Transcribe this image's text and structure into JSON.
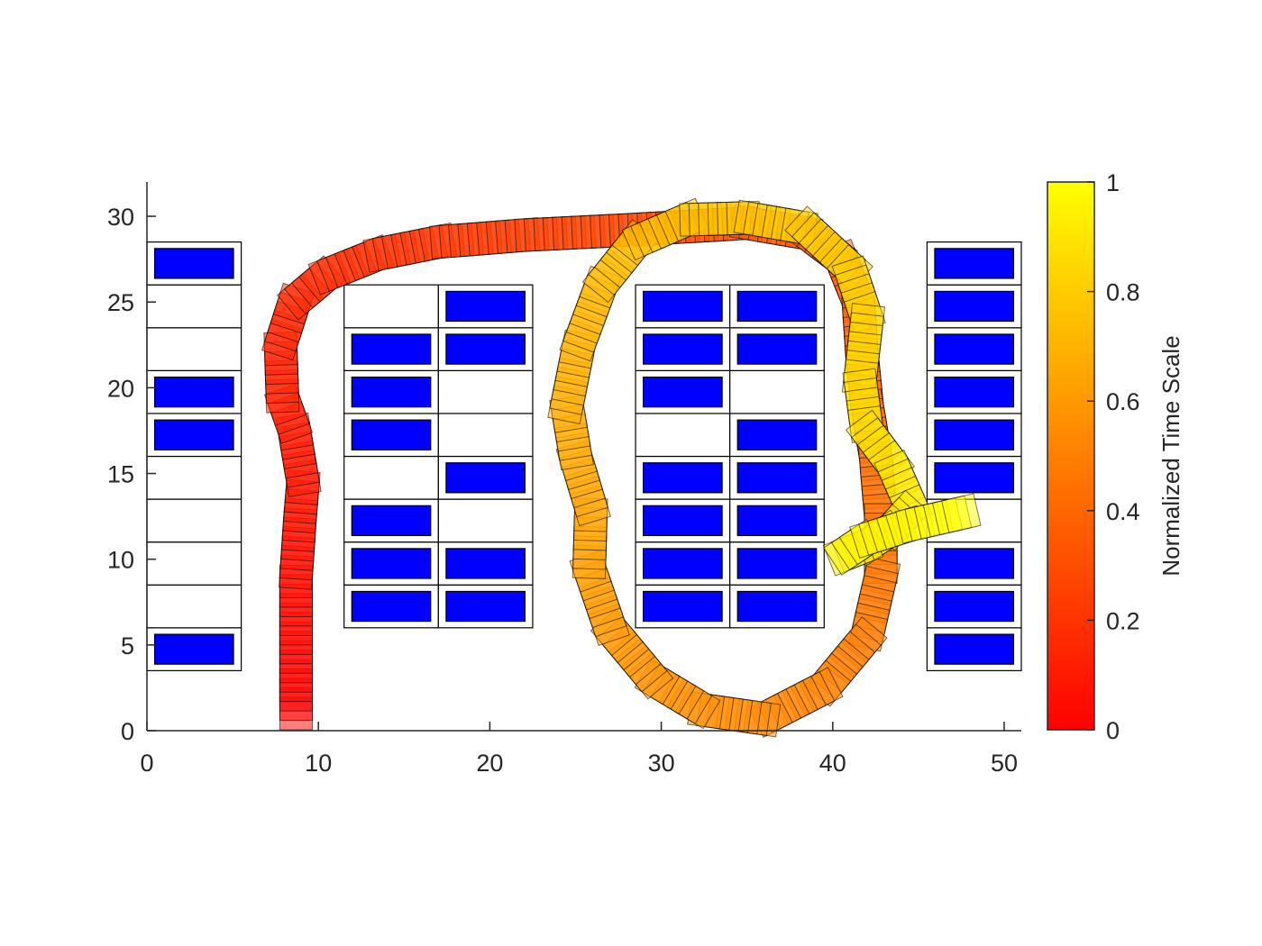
{
  "chart_data": {
    "type": "scatter",
    "title": "",
    "xlabel": "",
    "ylabel": "",
    "xlim": [
      0,
      51
    ],
    "ylim": [
      0,
      32
    ],
    "xticks": [
      0,
      10,
      20,
      30,
      40,
      50
    ],
    "yticks": [
      0,
      5,
      10,
      15,
      20,
      25,
      30
    ],
    "grid": false,
    "colorbar": {
      "label": "Normalized Time Scale",
      "range": [
        0,
        1
      ],
      "ticks": [
        "0",
        "0.2",
        "0.4",
        "0.6",
        "0.8",
        "1"
      ],
      "colormap": "autumn",
      "colors": [
        "#ff0000",
        "#ffff00"
      ]
    },
    "parking_grid_color": "#000000",
    "occupied_spot_color": "#0000ff",
    "parking_slots": [
      {
        "x": 0,
        "y": 3.5,
        "w": 5.5,
        "h": 2.5,
        "occupied": true
      },
      {
        "x": 0,
        "y": 6,
        "w": 5.5,
        "h": 2.5,
        "occupied": false
      },
      {
        "x": 0,
        "y": 8.5,
        "w": 5.5,
        "h": 2.5,
        "occupied": false
      },
      {
        "x": 0,
        "y": 11,
        "w": 5.5,
        "h": 2.5,
        "occupied": false
      },
      {
        "x": 0,
        "y": 13.5,
        "w": 5.5,
        "h": 2.5,
        "occupied": false
      },
      {
        "x": 0,
        "y": 16,
        "w": 5.5,
        "h": 2.5,
        "occupied": true
      },
      {
        "x": 0,
        "y": 18.5,
        "w": 5.5,
        "h": 2.5,
        "occupied": true
      },
      {
        "x": 0,
        "y": 21,
        "w": 5.5,
        "h": 2.5,
        "occupied": false
      },
      {
        "x": 0,
        "y": 23.5,
        "w": 5.5,
        "h": 2.5,
        "occupied": false
      },
      {
        "x": 0,
        "y": 26,
        "w": 5.5,
        "h": 2.5,
        "occupied": true
      },
      {
        "x": 11.5,
        "y": 6,
        "w": 5.5,
        "h": 2.5,
        "occupied": true
      },
      {
        "x": 11.5,
        "y": 8.5,
        "w": 5.5,
        "h": 2.5,
        "occupied": true
      },
      {
        "x": 11.5,
        "y": 11,
        "w": 5.5,
        "h": 2.5,
        "occupied": true
      },
      {
        "x": 11.5,
        "y": 13.5,
        "w": 5.5,
        "h": 2.5,
        "occupied": false
      },
      {
        "x": 11.5,
        "y": 16,
        "w": 5.5,
        "h": 2.5,
        "occupied": true
      },
      {
        "x": 11.5,
        "y": 18.5,
        "w": 5.5,
        "h": 2.5,
        "occupied": true
      },
      {
        "x": 11.5,
        "y": 21,
        "w": 5.5,
        "h": 2.5,
        "occupied": true
      },
      {
        "x": 11.5,
        "y": 23.5,
        "w": 5.5,
        "h": 2.5,
        "occupied": false
      },
      {
        "x": 17,
        "y": 6,
        "w": 5.5,
        "h": 2.5,
        "occupied": true
      },
      {
        "x": 17,
        "y": 8.5,
        "w": 5.5,
        "h": 2.5,
        "occupied": true
      },
      {
        "x": 17,
        "y": 11,
        "w": 5.5,
        "h": 2.5,
        "occupied": false
      },
      {
        "x": 17,
        "y": 13.5,
        "w": 5.5,
        "h": 2.5,
        "occupied": true
      },
      {
        "x": 17,
        "y": 16,
        "w": 5.5,
        "h": 2.5,
        "occupied": false
      },
      {
        "x": 17,
        "y": 18.5,
        "w": 5.5,
        "h": 2.5,
        "occupied": false
      },
      {
        "x": 17,
        "y": 21,
        "w": 5.5,
        "h": 2.5,
        "occupied": true
      },
      {
        "x": 17,
        "y": 23.5,
        "w": 5.5,
        "h": 2.5,
        "occupied": true
      },
      {
        "x": 28.5,
        "y": 6,
        "w": 5.5,
        "h": 2.5,
        "occupied": true
      },
      {
        "x": 28.5,
        "y": 8.5,
        "w": 5.5,
        "h": 2.5,
        "occupied": true
      },
      {
        "x": 28.5,
        "y": 11,
        "w": 5.5,
        "h": 2.5,
        "occupied": true
      },
      {
        "x": 28.5,
        "y": 13.5,
        "w": 5.5,
        "h": 2.5,
        "occupied": true
      },
      {
        "x": 28.5,
        "y": 16,
        "w": 5.5,
        "h": 2.5,
        "occupied": false
      },
      {
        "x": 28.5,
        "y": 18.5,
        "w": 5.5,
        "h": 2.5,
        "occupied": true
      },
      {
        "x": 28.5,
        "y": 21,
        "w": 5.5,
        "h": 2.5,
        "occupied": true
      },
      {
        "x": 28.5,
        "y": 23.5,
        "w": 5.5,
        "h": 2.5,
        "occupied": true
      },
      {
        "x": 34,
        "y": 6,
        "w": 5.5,
        "h": 2.5,
        "occupied": true
      },
      {
        "x": 34,
        "y": 8.5,
        "w": 5.5,
        "h": 2.5,
        "occupied": true
      },
      {
        "x": 34,
        "y": 11,
        "w": 5.5,
        "h": 2.5,
        "occupied": true
      },
      {
        "x": 34,
        "y": 13.5,
        "w": 5.5,
        "h": 2.5,
        "occupied": true
      },
      {
        "x": 34,
        "y": 16,
        "w": 5.5,
        "h": 2.5,
        "occupied": true
      },
      {
        "x": 34,
        "y": 18.5,
        "w": 5.5,
        "h": 2.5,
        "occupied": false
      },
      {
        "x": 34,
        "y": 21,
        "w": 5.5,
        "h": 2.5,
        "occupied": true
      },
      {
        "x": 34,
        "y": 23.5,
        "w": 5.5,
        "h": 2.5,
        "occupied": true
      },
      {
        "x": 45.5,
        "y": 3.5,
        "w": 5.5,
        "h": 2.5,
        "occupied": true
      },
      {
        "x": 45.5,
        "y": 6,
        "w": 5.5,
        "h": 2.5,
        "occupied": true
      },
      {
        "x": 45.5,
        "y": 8.5,
        "w": 5.5,
        "h": 2.5,
        "occupied": true
      },
      {
        "x": 45.5,
        "y": 11,
        "w": 5.5,
        "h": 2.5,
        "occupied": false
      },
      {
        "x": 45.5,
        "y": 13.5,
        "w": 5.5,
        "h": 2.5,
        "occupied": true
      },
      {
        "x": 45.5,
        "y": 16,
        "w": 5.5,
        "h": 2.5,
        "occupied": true
      },
      {
        "x": 45.5,
        "y": 18.5,
        "w": 5.5,
        "h": 2.5,
        "occupied": true
      },
      {
        "x": 45.5,
        "y": 21,
        "w": 5.5,
        "h": 2.5,
        "occupied": true
      },
      {
        "x": 45.5,
        "y": 23.5,
        "w": 5.5,
        "h": 2.5,
        "occupied": true
      },
      {
        "x": 45.5,
        "y": 26,
        "w": 5.5,
        "h": 2.5,
        "occupied": true
      }
    ],
    "vehicle_path": {
      "name": "",
      "waypoints": [
        [
          8.7,
          1.0
        ],
        [
          8.7,
          5.0
        ],
        [
          8.7,
          9.0
        ],
        [
          8.9,
          12.0
        ],
        [
          9.1,
          14.5
        ],
        [
          8.6,
          17.5
        ],
        [
          7.9,
          19.5
        ],
        [
          7.8,
          22.5
        ],
        [
          8.6,
          25.0
        ],
        [
          10.5,
          26.6
        ],
        [
          13.5,
          27.8
        ],
        [
          17.0,
          28.5
        ],
        [
          22.0,
          28.9
        ],
        [
          28.0,
          29.2
        ],
        [
          35.0,
          29.6
        ],
        [
          38.5,
          29.0
        ],
        [
          40.5,
          27.5
        ],
        [
          41.5,
          25.0
        ],
        [
          41.7,
          22.0
        ],
        [
          42.0,
          19.0
        ],
        [
          42.5,
          16.0
        ],
        [
          42.8,
          12.5
        ],
        [
          42.8,
          9.0
        ],
        [
          42.0,
          5.5
        ],
        [
          39.5,
          2.5
        ],
        [
          36.0,
          0.7
        ],
        [
          32.5,
          1.2
        ],
        [
          29.5,
          3.0
        ],
        [
          27.0,
          6.0
        ],
        [
          25.8,
          9.5
        ],
        [
          25.9,
          13.0
        ],
        [
          25.0,
          16.0
        ],
        [
          24.5,
          19.0
        ],
        [
          25.2,
          22.5
        ],
        [
          26.5,
          26.0
        ],
        [
          28.5,
          28.5
        ],
        [
          31.5,
          29.8
        ],
        [
          35.0,
          29.9
        ],
        [
          38.5,
          29.3
        ],
        [
          41.0,
          27.0
        ],
        [
          42.0,
          24.0
        ],
        [
          41.6,
          20.5
        ],
        [
          42.0,
          17.5
        ],
        [
          43.5,
          15.5
        ],
        [
          44.6,
          13.0
        ],
        [
          43.5,
          11.8
        ],
        [
          42.0,
          10.8
        ],
        [
          40.5,
          10.2
        ],
        [
          42.0,
          11.2
        ],
        [
          44.5,
          12.0
        ],
        [
          48.0,
          12.8
        ]
      ]
    }
  }
}
